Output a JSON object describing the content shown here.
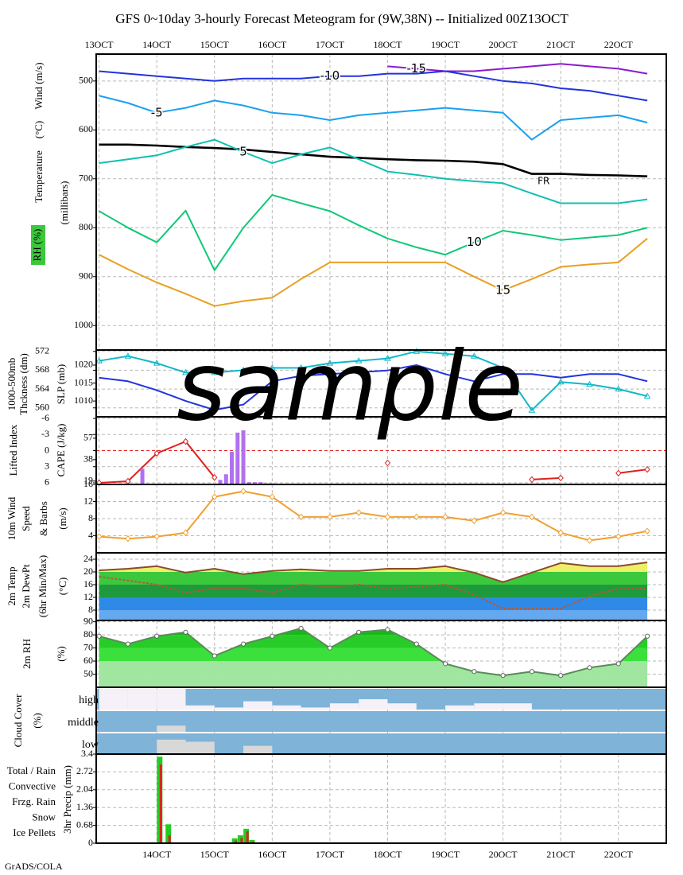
{
  "title": "GFS 0~10day 3-hourly Forecast Meteogram for (9W,38N) -- Initialized 00Z13OCT",
  "footer": "GrADS/COLA",
  "watermark": "sample",
  "chart_data": [
    {
      "type": "line",
      "labels": [
        {
          "text": "Wind (m/s)",
          "color": "#000000"
        },
        {
          "text": "(°C)",
          "color": "#e0204a"
        },
        {
          "text": "Temperature",
          "color": "#e08a30"
        },
        {
          "text": "RH (%)",
          "color": "#000000",
          "background": "#3cc83c"
        },
        {
          "text": "(millibars)",
          "color": "#000000"
        }
      ],
      "annotations": [
        "FR"
      ],
      "xlim": [
        -0.05,
        9.83
      ],
      "xticks": [
        {
          "value": 0,
          "label": "13OCT"
        },
        {
          "value": 1,
          "label": "14OCT"
        },
        {
          "value": 2,
          "label": "15OCT"
        },
        {
          "value": 3,
          "label": "16OCT"
        },
        {
          "value": 4,
          "label": "17OCT"
        },
        {
          "value": 5,
          "label": "18OCT"
        },
        {
          "value": 6,
          "label": "19OCT"
        },
        {
          "value": 7,
          "label": "20OCT"
        },
        {
          "value": 8,
          "label": "21OCT"
        },
        {
          "value": 9,
          "label": "22OCT"
        }
      ],
      "ylim": [
        1050,
        445
      ],
      "yticks": [
        500,
        600,
        700,
        800,
        900,
        1000
      ],
      "grid": true,
      "x": [
        0,
        0.5,
        1,
        1.5,
        2,
        2.5,
        3,
        3.5,
        4,
        4.5,
        5,
        5.5,
        6,
        6.5,
        7,
        7.5,
        8,
        8.5,
        9,
        9.5
      ],
      "series": [
        {
          "name": "-15",
          "color": "#8a1ccc",
          "values": [
            null,
            null,
            null,
            null,
            null,
            null,
            null,
            null,
            null,
            null,
            470,
            475,
            480,
            480,
            475,
            470,
            465,
            470,
            475,
            485
          ]
        },
        {
          "name": "-10",
          "color": "#2233dd",
          "values": [
            480,
            485,
            490,
            495,
            500,
            495,
            495,
            495,
            490,
            490,
            485,
            485,
            480,
            490,
            500,
            505,
            515,
            520,
            530,
            540
          ]
        },
        {
          "name": "-5",
          "color": "#1aa0f0",
          "values": [
            530,
            545,
            565,
            555,
            540,
            550,
            565,
            570,
            580,
            570,
            565,
            560,
            555,
            560,
            565,
            620,
            580,
            575,
            570,
            585
          ]
        },
        {
          "color": "#000000",
          "values": [
            630,
            630,
            632,
            635,
            637,
            640,
            645,
            650,
            655,
            657,
            660,
            662,
            663,
            665,
            670,
            690,
            690,
            692,
            693,
            695
          ]
        },
        {
          "name": "5",
          "color": "#10c0b0",
          "values": [
            668,
            660,
            652,
            635,
            620,
            645,
            668,
            650,
            636,
            660,
            685,
            692,
            700,
            705,
            709,
            730,
            750,
            750,
            750,
            742
          ]
        },
        {
          "name": "10",
          "color": "#10c878",
          "values": [
            766,
            800,
            830,
            765,
            887,
            800,
            733,
            750,
            766,
            795,
            822,
            840,
            855,
            830,
            806,
            815,
            825,
            820,
            815,
            800
          ]
        },
        {
          "name": "15",
          "color": "#e8a020",
          "values": [
            855,
            885,
            912,
            935,
            960,
            950,
            943,
            905,
            871,
            871,
            871,
            871,
            871,
            900,
            928,
            905,
            880,
            875,
            871,
            822
          ]
        }
      ]
    },
    {
      "type": "line",
      "labels": [
        {
          "text": "1000-500mb",
          "color": "#10b8c8"
        },
        {
          "text": "Thckness (dm)",
          "color": "#10b8c8"
        },
        {
          "text": "SLP (mb)",
          "color": "#2233dd"
        }
      ],
      "ylim": [
        558.1,
        572.3
      ],
      "yticks": [
        560,
        564,
        568,
        572
      ],
      "y2lim": [
        1005.6,
        1024.2
      ],
      "y2ticks": [
        1010,
        1015,
        1020
      ],
      "grid": true,
      "x": [
        0,
        0.5,
        1,
        1.5,
        2,
        2.5,
        3,
        3.5,
        4,
        4.5,
        5,
        5.5,
        6,
        6.5,
        7,
        7.5,
        8,
        8.5,
        9,
        9.5
      ],
      "series": [
        {
          "color": "#10b8c8",
          "marker": "triangle",
          "values": [
            570,
            571,
            569.5,
            567.5,
            567.5,
            568,
            568.5,
            568.5,
            569.5,
            570,
            570.5,
            572,
            571.5,
            571,
            568.5,
            559.5,
            565.5,
            565,
            564,
            562.5
          ]
        },
        {
          "color": "#2233dd",
          "axis": "y2",
          "values": [
            1016.5,
            1015.5,
            1013,
            1010,
            1007.5,
            1009,
            1015.5,
            1017,
            1017.5,
            1018,
            1018.5,
            1020,
            1017.5,
            1015.5,
            1017.5,
            1017.5,
            1016.5,
            1017.5,
            1017.5,
            1015.5
          ]
        }
      ]
    },
    {
      "type": "line",
      "labels": [
        {
          "text": "Lifted Index",
          "color": "#e02020"
        },
        {
          "text": "CAPE (J/kg)",
          "color": "#b070e0"
        }
      ],
      "ylim": [
        6.3,
        -6.3
      ],
      "yticks": [
        -6,
        -3,
        0,
        3,
        6
      ],
      "y2lim": [
        16,
        76
      ],
      "y2ticks": [
        16,
        19,
        38,
        57
      ],
      "grid": true,
      "x": [
        0,
        0.5,
        1,
        1.5,
        2,
        2.5,
        3,
        3.5,
        4,
        4.5,
        5,
        5.5,
        6,
        6.5,
        7,
        7.5,
        8,
        8.5,
        9,
        9.5
      ],
      "series": [
        {
          "color": "#e02020",
          "marker": "diamond",
          "values": [
            6,
            5.7,
            0.5,
            -1.7,
            5,
            null,
            null,
            null,
            null,
            null,
            2.3,
            null,
            null,
            null,
            null,
            5.4,
            5.1,
            null,
            4.2,
            3.5
          ]
        },
        {
          "type": "bar",
          "axis": "y2",
          "color": "#b070f0",
          "x": [
            0.75,
            2.1,
            2.2,
            2.3,
            2.4,
            2.5,
            2.6,
            2.7,
            2.8,
            2.9,
            3.0
          ],
          "values": [
            30,
            20,
            25,
            45,
            62,
            64,
            18,
            18,
            18,
            17,
            17
          ]
        }
      ]
    },
    {
      "type": "line",
      "labels": [
        {
          "text": "10m Wind",
          "color": "#e88a20"
        },
        {
          "text": "Speed",
          "color": "#e88a20"
        },
        {
          "text": "& Barbs",
          "color": "#000000"
        },
        {
          "text": "(m/s)",
          "color": "#000000"
        }
      ],
      "ylim": [
        0,
        16
      ],
      "yticks": [
        4,
        8,
        12
      ],
      "grid": true,
      "x": [
        0,
        0.5,
        1,
        1.5,
        2,
        2.5,
        3,
        3.5,
        4,
        4.5,
        5,
        5.5,
        6,
        6.5,
        7,
        7.5,
        8,
        8.5,
        9,
        9.5
      ],
      "series": [
        {
          "color": "#f0a030",
          "marker": "diamond",
          "values": [
            3.8,
            3.3,
            3.8,
            4.7,
            13.1,
            14.4,
            13.1,
            8.4,
            8.4,
            9.4,
            8.4,
            8.4,
            8.4,
            7.5,
            9.4,
            8.4,
            4.7,
            2.9,
            3.8,
            5.1
          ]
        }
      ]
    },
    {
      "type": "line",
      "labels": [
        {
          "text": "2m Temp",
          "color": "#8b3a2a"
        },
        {
          "text": "2m DewPt",
          "color": "#8b3a2a"
        },
        {
          "text": "(6hr Min/Max)",
          "color": "#8b3a2a"
        },
        {
          "text": "(°C)",
          "color": "#000000"
        }
      ],
      "ylim": [
        4.75,
        26
      ],
      "yticks": [
        8,
        12,
        16,
        20,
        24
      ],
      "band_colors": [
        "#64a8f0",
        "#2e8ae6",
        "#1e9a3c",
        "#3cc83c",
        "#ecf068",
        "#ecf068"
      ],
      "grid": true,
      "x": [
        0,
        0.5,
        1,
        1.5,
        2,
        2.5,
        3,
        3.5,
        4,
        4.5,
        5,
        5.5,
        6,
        6.5,
        7,
        7.5,
        8,
        8.5,
        9,
        9.5
      ],
      "series": [
        {
          "type": "area",
          "color": "#8b4a2a",
          "values": [
            20.5,
            21,
            21.8,
            19.8,
            21,
            19.3,
            20.3,
            20.8,
            20.3,
            20.3,
            21,
            21,
            21.8,
            19.8,
            16.8,
            19.8,
            22.8,
            21.8,
            21.8,
            23
          ]
        },
        {
          "color": "#b05a3a",
          "dash": true,
          "values": [
            18.5,
            17.3,
            16,
            13.5,
            14.8,
            14.8,
            13.5,
            16,
            15.3,
            16,
            14.8,
            15.3,
            16,
            12.8,
            8.5,
            8.5,
            8.5,
            12.3,
            14.8,
            14.8
          ]
        }
      ]
    },
    {
      "type": "line",
      "labels": [
        {
          "text": "2m RH",
          "color": "#50c850"
        },
        {
          "text": "(%)",
          "color": "#000000"
        }
      ],
      "ylim": [
        40,
        91
      ],
      "yticks": [
        50,
        60,
        70,
        80,
        90
      ],
      "band_colors": [
        "#a0e6a0",
        "#a0e6a0",
        "#3ce03c",
        "#28cc28",
        "#18b818",
        "#18b818"
      ],
      "grid": true,
      "x": [
        0,
        0.5,
        1,
        1.5,
        2,
        2.5,
        3,
        3.5,
        4,
        4.5,
        5,
        5.5,
        6,
        6.5,
        7,
        7.5,
        8,
        8.5,
        9,
        9.5
      ],
      "series": [
        {
          "type": "area",
          "color": "#5a8a5a",
          "marker": "circle",
          "values": [
            79,
            73,
            79,
            82,
            64,
            73,
            79,
            85,
            70,
            82,
            84,
            73,
            58,
            52,
            49,
            52,
            49,
            55,
            58,
            79
          ]
        }
      ]
    },
    {
      "type": "cloud",
      "labels": [
        {
          "text": "Cloud Cover",
          "color": "#2a90d0"
        },
        {
          "text": "(%)",
          "color": "#000000"
        }
      ],
      "categories": [
        "high",
        "middle",
        "low"
      ],
      "background": "#7fb3d8",
      "x": [
        0,
        0.5,
        1,
        1.5,
        2,
        2.5,
        3,
        3.5,
        4,
        4.5,
        5,
        5.5,
        6,
        6.5,
        7,
        7.5,
        8,
        8.5,
        9,
        9.5
      ],
      "series": [
        {
          "color": "#f6f0f8",
          "values": [
            100,
            100,
            100,
            20,
            10,
            40,
            20,
            10,
            30,
            50,
            30,
            0,
            20,
            30,
            30,
            0,
            0,
            0,
            0,
            0
          ]
        },
        {
          "color": "#d8d8d8",
          "values": [
            0,
            0,
            30,
            0,
            0,
            0,
            0,
            0,
            0,
            0,
            0,
            0,
            0,
            0,
            0,
            0,
            0,
            0,
            0,
            0
          ]
        },
        {
          "color": "#d8d8d8",
          "values": [
            0,
            0,
            70,
            60,
            0,
            40,
            0,
            0,
            0,
            0,
            0,
            0,
            0,
            0,
            0,
            0,
            0,
            0,
            0,
            0
          ]
        }
      ]
    },
    {
      "type": "bar",
      "labels": [
        {
          "text": "3hr Precip (mm)",
          "color": "#000000"
        }
      ],
      "xlim": [
        -0.05,
        9.83
      ],
      "xticks": [
        {
          "value": 1,
          "label": "14OCT"
        },
        {
          "value": 2,
          "label": "15OCT"
        },
        {
          "value": 3,
          "label": "16OCT"
        },
        {
          "value": 4,
          "label": "17OCT"
        },
        {
          "value": 5,
          "label": "18OCT"
        },
        {
          "value": 6,
          "label": "19OCT"
        },
        {
          "value": 7,
          "label": "20OCT"
        },
        {
          "value": 8,
          "label": "21OCT"
        },
        {
          "value": 9,
          "label": "22OCT"
        }
      ],
      "ylim": [
        0,
        3.4
      ],
      "yticks": [
        0,
        0.68,
        1.36,
        2.04,
        2.72,
        3.4
      ],
      "grid": true,
      "series": [
        {
          "name": "Total / Rain",
          "color": "#22cc22",
          "x": [
            1.05,
            1.2,
            2.35,
            2.45,
            2.55,
            2.65
          ],
          "values": [
            3.3,
            0.72,
            0.18,
            0.3,
            0.55,
            0.12
          ]
        },
        {
          "name": "Convective",
          "color": "#e02020",
          "x": [
            1.05,
            1.2,
            2.35,
            2.45,
            2.55,
            2.65
          ],
          "values": [
            3.0,
            0.3,
            0.1,
            0.2,
            0.45,
            0.05
          ]
        },
        {
          "name": "Frzg. Rain",
          "color": "#f08020",
          "x": [],
          "values": []
        },
        {
          "name": "Snow",
          "color": "#2040e0",
          "x": [],
          "values": []
        },
        {
          "name": "Ice Pellets",
          "color": "#20c8d8",
          "x": [],
          "values": []
        }
      ]
    }
  ]
}
